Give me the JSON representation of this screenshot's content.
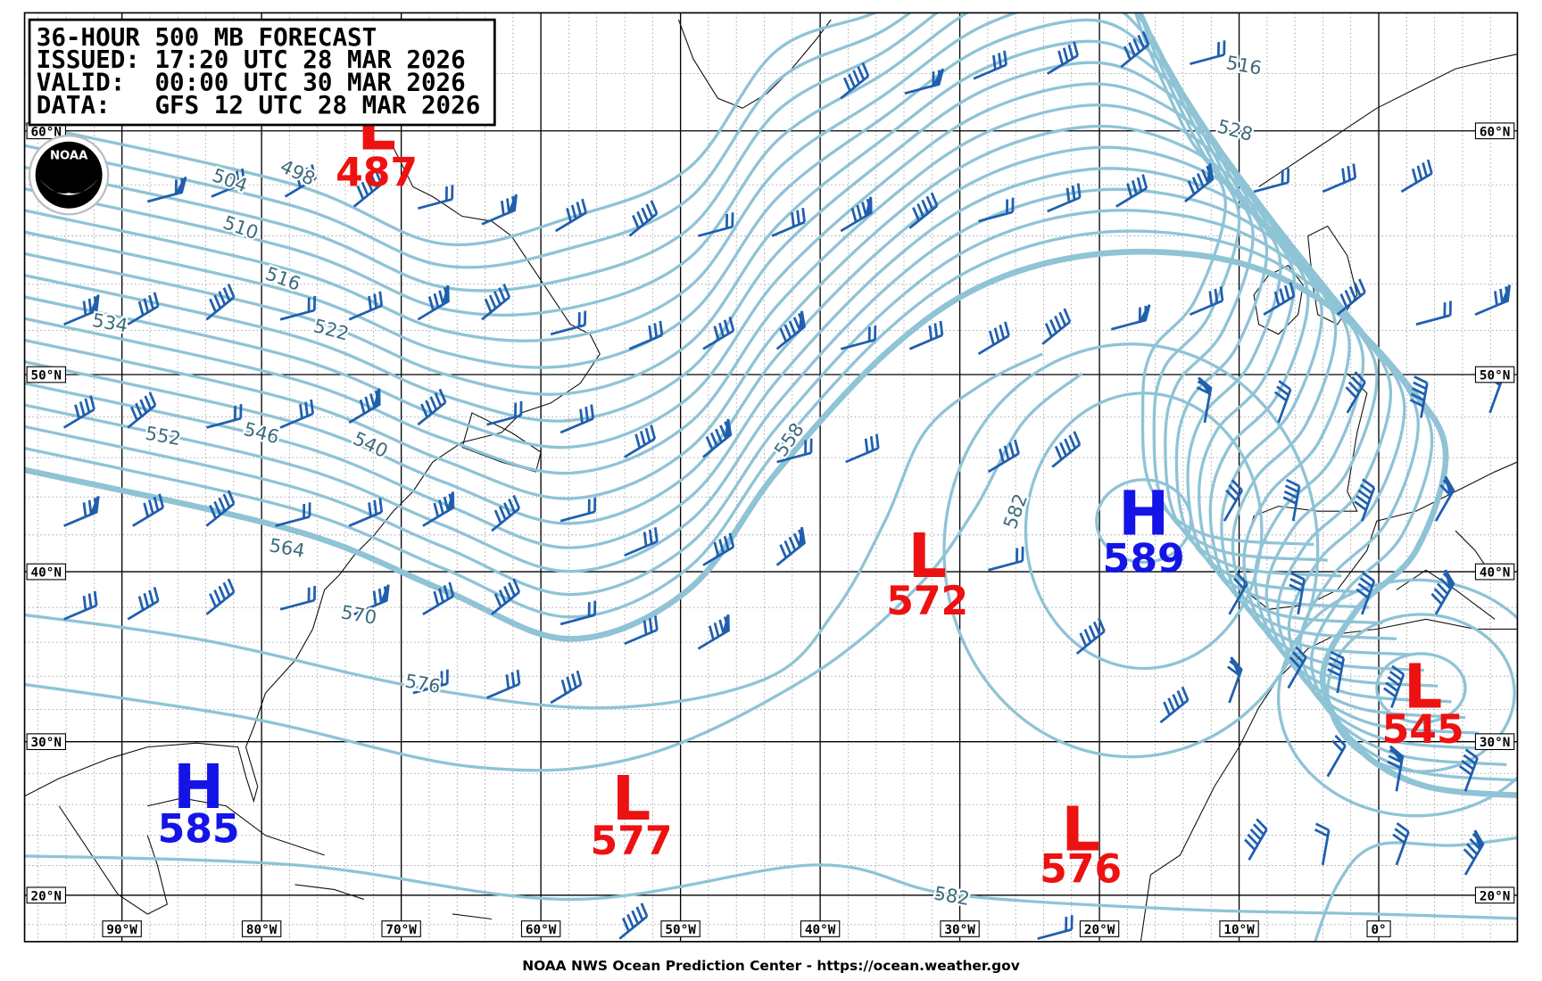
{
  "header": {
    "lines": [
      "36-HOUR 500 MB FORECAST",
      "ISSUED: 17:20 UTC 28 MAR 2026",
      "VALID:  00:00 UTC 30 MAR 2026",
      "DATA:   GFS 12 UTC 28 MAR 2026"
    ]
  },
  "logo": "NOAA",
  "latitudes": [
    "60°N",
    "50°N",
    "40°N",
    "30°N",
    "20°N"
  ],
  "longitudes": [
    "90°W",
    "80°W",
    "70°W",
    "60°W",
    "50°W",
    "40°W",
    "30°W",
    "20°W",
    "10°W",
    "0°"
  ],
  "centers": [
    {
      "type": "L",
      "value": 487
    },
    {
      "type": "H",
      "value": 585
    },
    {
      "type": "L",
      "value": 577
    },
    {
      "type": "L",
      "value": 572
    },
    {
      "type": "H",
      "value": 589
    },
    {
      "type": "L",
      "value": 576
    },
    {
      "type": "L",
      "value": 545
    }
  ],
  "contour_labels": [
    516,
    528,
    498,
    504,
    510,
    516,
    534,
    522,
    552,
    546,
    540,
    558,
    582,
    564,
    570,
    576,
    582
  ],
  "footer": "NOAA NWS Ocean Prediction Center - https://ocean.weather.gov"
}
